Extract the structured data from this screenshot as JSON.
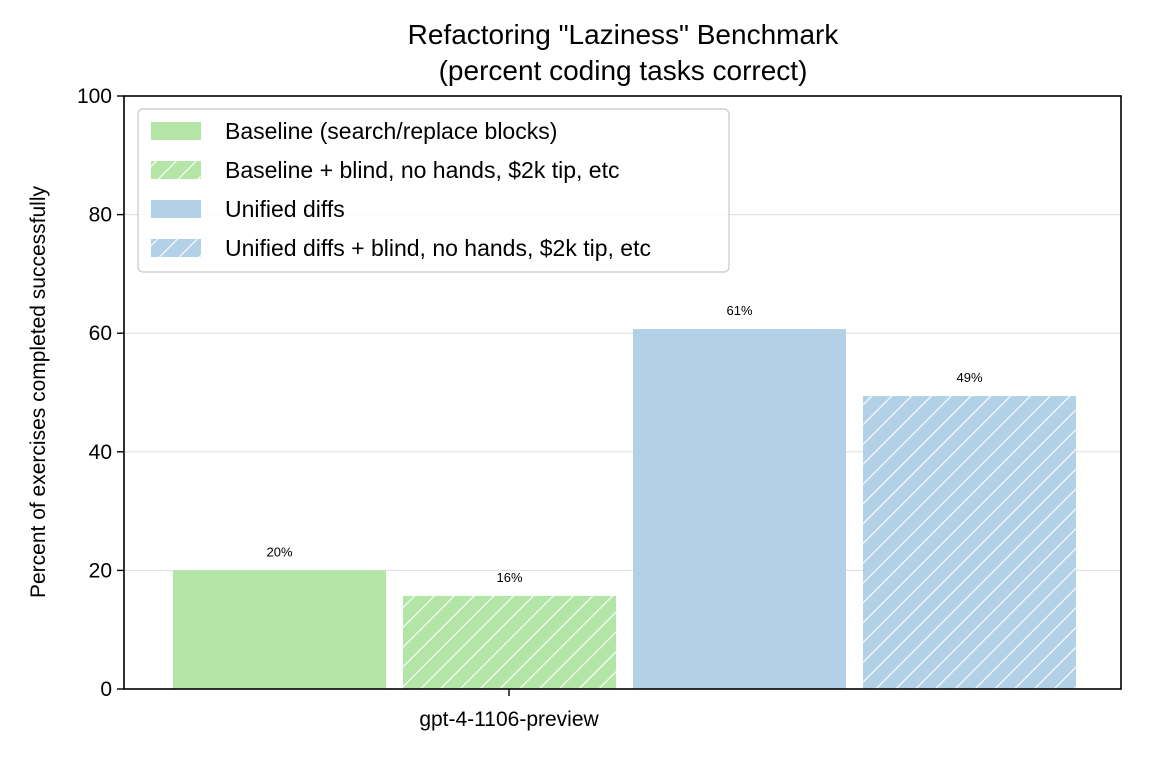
{
  "chart_data": {
    "type": "bar",
    "title": "Refactoring \"Laziness\" Benchmark",
    "subtitle": "(percent coding tasks correct)",
    "xlabel": "",
    "ylabel": "Percent of exercises completed successfully",
    "categories": [
      "gpt-4-1106-preview"
    ],
    "ylim": [
      0,
      100
    ],
    "yticks": [
      0,
      20,
      40,
      60,
      80,
      100
    ],
    "grid": "horizontal",
    "legend_position": "top-left",
    "series": [
      {
        "name": "Baseline (search/replace blocks)",
        "values": [
          20
        ],
        "label": "20%",
        "color": "#b3e6a6",
        "hatch": false
      },
      {
        "name": "Baseline + blind, no hands, $2k tip, etc",
        "values": [
          15.7
        ],
        "label": "16%",
        "color": "#b3e6a6",
        "hatch": true
      },
      {
        "name": "Unified diffs",
        "values": [
          60.7
        ],
        "label": "61%",
        "color": "#b3d1e6",
        "hatch": false
      },
      {
        "name": "Unified diffs + blind, no hands, $2k tip, etc",
        "values": [
          49.4
        ],
        "label": "49%",
        "color": "#b3d1e6",
        "hatch": true
      }
    ]
  }
}
